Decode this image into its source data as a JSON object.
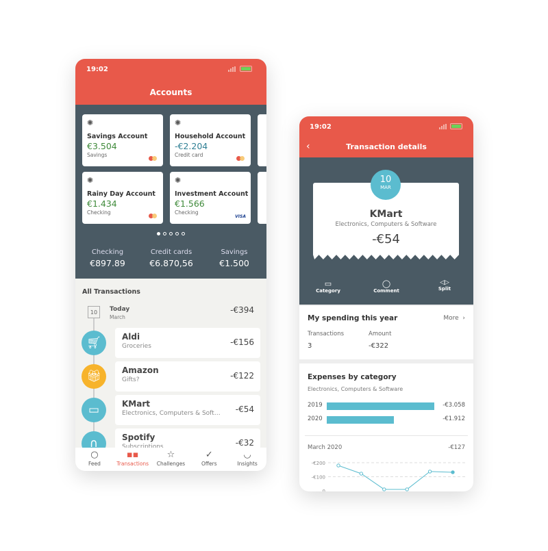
{
  "accounts_screen": {
    "status_time": "19:02",
    "title": "Accounts",
    "accounts": [
      {
        "name": "Savings Account",
        "balance": "€3.504",
        "type": "Savings",
        "card": "mastercard",
        "color": "#3f8a3a"
      },
      {
        "name": "Household Account",
        "balance": "-€2.204",
        "type": "Credit card",
        "card": "mastercard",
        "color": "#2f7f94"
      },
      {
        "name": "Rainy Day Account",
        "balance": "€1.434",
        "type": "Checking",
        "card": "mastercard",
        "color": "#3f8a3a"
      },
      {
        "name": "Investment Account",
        "balance": "€1.566",
        "type": "Checking",
        "card": "visa",
        "card_label": "VISA",
        "color": "#3f8a3a"
      }
    ],
    "page_dots": {
      "total": 5,
      "active": 1
    },
    "summary": [
      {
        "label": "Checking",
        "value": "€897.89"
      },
      {
        "label": "Credit cards",
        "value": "€6.870,56"
      },
      {
        "label": "Savings",
        "value": "€1.500"
      }
    ],
    "transactions_title": "All Transactions",
    "day": {
      "date_num": "10",
      "label": "Today",
      "month": "March",
      "total": "-€394"
    },
    "transactions": [
      {
        "merchant": "Aldi",
        "category": "Groceries",
        "amount": "-€156",
        "icon": "cart-icon",
        "color": "#5bbccf"
      },
      {
        "merchant": "Amazon",
        "category": "Gifts?",
        "amount": "-€122",
        "icon": "gift-icon",
        "color": "#f7b32b"
      },
      {
        "merchant": "KMart",
        "category": "Electronics, Computers & Software",
        "amount": "-€54",
        "icon": "monitor-icon",
        "color": "#5bbccf"
      },
      {
        "merchant": "Spotify",
        "category": "Subscriptions",
        "amount": "-€32",
        "icon": "headphones-icon",
        "color": "#5bbccf"
      }
    ],
    "tabs": [
      {
        "label": "Feed",
        "icon": "circle-icon"
      },
      {
        "label": "Transactions",
        "icon": "grid-icon",
        "active": true
      },
      {
        "label": "Challenges",
        "icon": "star-icon"
      },
      {
        "label": "Offers",
        "icon": "check-icon"
      },
      {
        "label": "Insights",
        "icon": "smile-icon"
      }
    ]
  },
  "details_screen": {
    "status_time": "19:02",
    "title": "Transaction details",
    "date_day": "10",
    "date_month": "MAR",
    "merchant": "KMart",
    "category": "Electronics, Computers & Software",
    "amount": "-€54",
    "actions": [
      {
        "label": "Category",
        "icon": "monitor-icon"
      },
      {
        "label": "Comment",
        "icon": "comment-icon"
      },
      {
        "label": "Split",
        "icon": "split-icon"
      }
    ],
    "spending": {
      "title": "My spending this year",
      "more": "More",
      "tx_label": "Transactions",
      "tx_value": "3",
      "amount_label": "Amount",
      "amount_value": "-€322"
    },
    "expenses": {
      "title": "Expenses by category",
      "subtitle": "Electronics, Computers & Software",
      "bars": [
        {
          "year": "2019",
          "value": 3058,
          "label": "-€3.058"
        },
        {
          "year": "2020",
          "value": 1912,
          "label": "-€1.912"
        }
      ],
      "month_label": "March 2020",
      "month_value": "-€127",
      "line": {
        "y_ticks": [
          "-€200",
          "-€100",
          "0"
        ],
        "values": [
          180,
          122,
          10,
          10,
          137,
          132
        ]
      }
    },
    "accent": "#e8594a",
    "chart_color": "#5bbccf"
  }
}
